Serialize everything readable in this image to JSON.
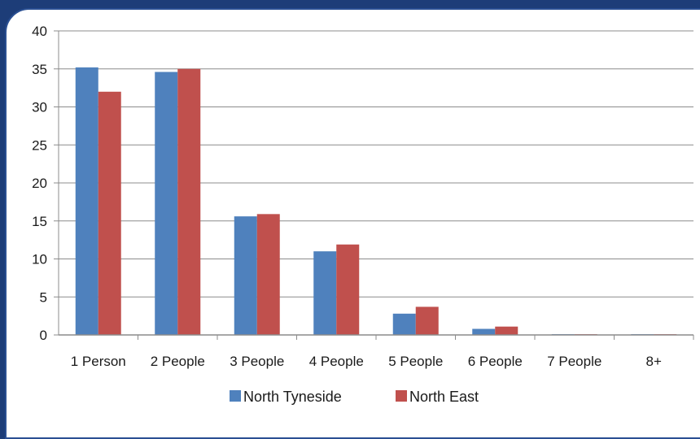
{
  "chart_data": {
    "type": "bar",
    "title": "",
    "xlabel": "",
    "ylabel": "",
    "categories": [
      "1 Person",
      "2 People",
      "3 People",
      "4 People",
      "5 People",
      "6 People",
      "7 People",
      "8+"
    ],
    "series": [
      {
        "name": "North Tyneside",
        "color": "#4f81bd",
        "values": [
          35.2,
          34.6,
          15.6,
          11.0,
          2.8,
          0.8,
          0.1,
          0.1
        ]
      },
      {
        "name": "North East",
        "color": "#c0504d",
        "values": [
          32.0,
          35.0,
          15.9,
          11.9,
          3.7,
          1.1,
          0.1,
          0.1
        ]
      }
    ],
    "ylim": [
      0,
      40
    ],
    "yticks": [
      0,
      5,
      10,
      15,
      20,
      25,
      30,
      35,
      40
    ],
    "grid": true,
    "legend": "bottom"
  }
}
